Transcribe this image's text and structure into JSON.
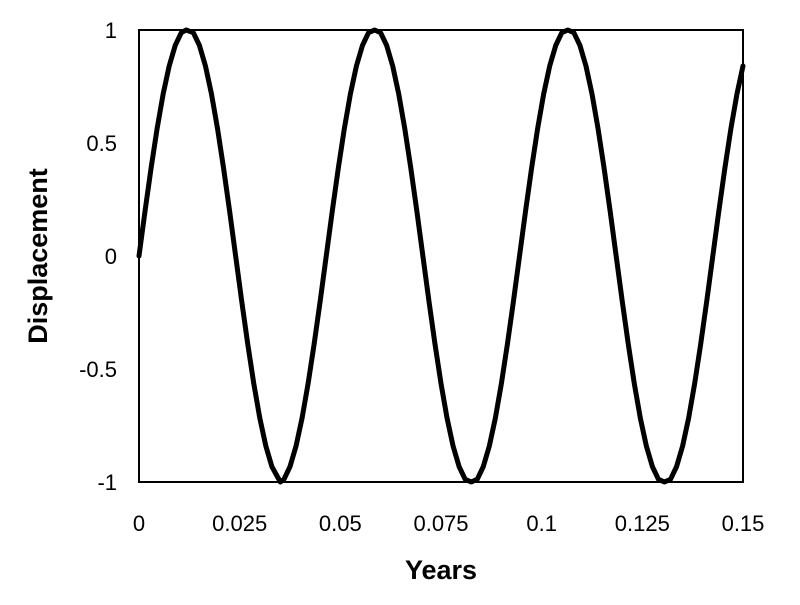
{
  "chart_data": {
    "type": "line",
    "title": "",
    "xlabel": "Years",
    "ylabel": "Displacement",
    "xlim": [
      0,
      0.15
    ],
    "ylim": [
      -1,
      1
    ],
    "x_ticks": [
      {
        "value": 0,
        "label": "0"
      },
      {
        "value": 0.025,
        "label": "0.025"
      },
      {
        "value": 0.05,
        "label": "0.05"
      },
      {
        "value": 0.075,
        "label": "0.075"
      },
      {
        "value": 0.1,
        "label": "0.1"
      },
      {
        "value": 0.125,
        "label": "0.125"
      },
      {
        "value": 0.15,
        "label": "0.15"
      }
    ],
    "y_ticks": [
      {
        "value": 1,
        "label": "1"
      },
      {
        "value": 0.5,
        "label": "0.5"
      },
      {
        "value": 0,
        "label": "0"
      },
      {
        "value": -0.5,
        "label": "-0.5"
      },
      {
        "value": -1,
        "label": "-1"
      }
    ],
    "grid": false,
    "legend": "none",
    "series": [
      {
        "color": "#000000",
        "x": [
          0,
          0.0015,
          0.003,
          0.0045,
          0.006,
          0.0075,
          0.009,
          0.0105,
          0.0117,
          0.0135,
          0.015,
          0.0165,
          0.018,
          0.0195,
          0.021,
          0.0225,
          0.024,
          0.0255,
          0.027,
          0.0285,
          0.03,
          0.0315,
          0.033,
          0.0351,
          0.036,
          0.0375,
          0.039,
          0.0405,
          0.042,
          0.0435,
          0.045,
          0.0465,
          0.048,
          0.0495,
          0.051,
          0.0525,
          0.054,
          0.0555,
          0.057,
          0.0585,
          0.06,
          0.0615,
          0.063,
          0.0645,
          0.066,
          0.0675,
          0.069,
          0.0705,
          0.072,
          0.0735,
          0.075,
          0.0765,
          0.078,
          0.0795,
          0.081,
          0.0825,
          0.084,
          0.0855,
          0.087,
          0.0885,
          0.09,
          0.0915,
          0.093,
          0.0945,
          0.096,
          0.0975,
          0.099,
          0.1005,
          0.102,
          0.1035,
          0.105,
          0.1065,
          0.108,
          0.1095,
          0.111,
          0.1125,
          0.114,
          0.1155,
          0.117,
          0.1185,
          0.12,
          0.1215,
          0.123,
          0.1245,
          0.126,
          0.1275,
          0.129,
          0.1305,
          0.132,
          0.1335,
          0.135,
          0.1365,
          0.138,
          0.1395,
          0.141,
          0.1425,
          0.144,
          0.1455,
          0.147,
          0.1485,
          0.15
        ],
        "y": [
          0,
          0.199,
          0.389,
          0.564,
          0.717,
          0.841,
          0.932,
          0.988,
          1,
          0.988,
          0.932,
          0.841,
          0.717,
          0.564,
          0.389,
          0.199,
          0,
          -0.199,
          -0.389,
          -0.564,
          -0.717,
          -0.841,
          -0.932,
          -1,
          -0.988,
          -0.932,
          -0.841,
          -0.717,
          -0.564,
          -0.389,
          -0.199,
          0,
          0.199,
          0.389,
          0.564,
          0.717,
          0.841,
          0.932,
          0.988,
          1,
          0.988,
          0.932,
          0.841,
          0.717,
          0.564,
          0.389,
          0.199,
          0,
          -0.199,
          -0.389,
          -0.564,
          -0.717,
          -0.841,
          -0.932,
          -0.988,
          -1,
          -0.988,
          -0.932,
          -0.841,
          -0.717,
          -0.564,
          -0.389,
          -0.199,
          0,
          0.199,
          0.389,
          0.564,
          0.717,
          0.841,
          0.932,
          0.988,
          1,
          0.988,
          0.932,
          0.841,
          0.717,
          0.564,
          0.389,
          0.199,
          0,
          -0.199,
          -0.389,
          -0.564,
          -0.717,
          -0.841,
          -0.932,
          -0.988,
          -1,
          -0.988,
          -0.932,
          -0.841,
          -0.717,
          -0.564,
          -0.389,
          -0.199,
          0,
          0.199,
          0.389,
          0.564,
          0.717,
          0.841
        ]
      }
    ]
  }
}
